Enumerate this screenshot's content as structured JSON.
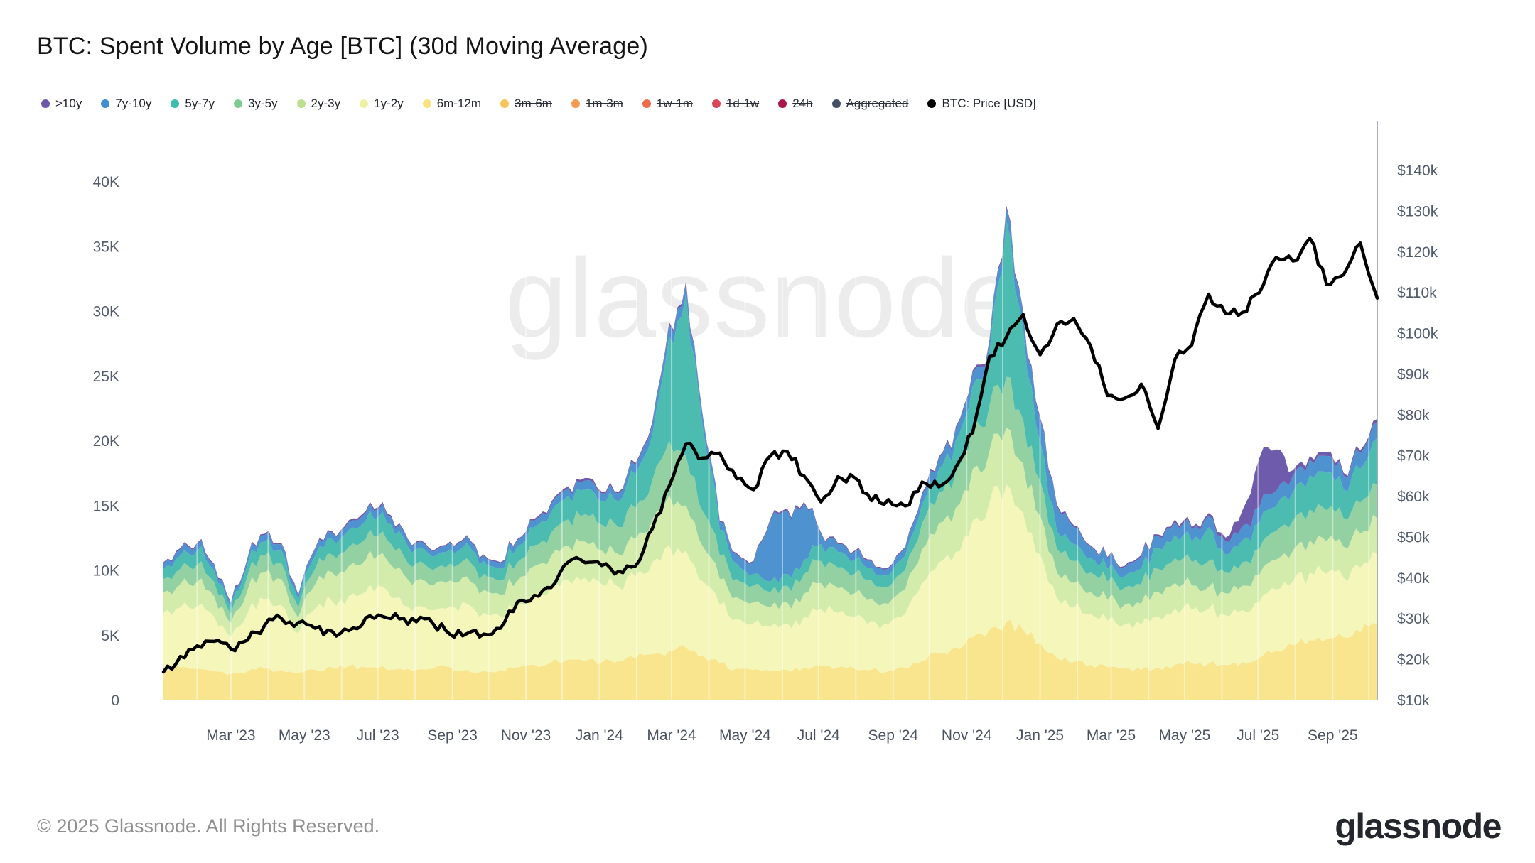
{
  "page": {
    "title": "BTC: Spent Volume by Age [BTC] (30d Moving Average)",
    "watermark": "glassnode"
  },
  "footer": {
    "copyright": "© 2025 Glassnode. All Rights Reserved.",
    "logo": "glassnode"
  },
  "legend": [
    {
      "label": ">10y",
      "color": "#6b58a8",
      "struck": false
    },
    {
      "label": "7y-10y",
      "color": "#3f8fd2",
      "struck": false
    },
    {
      "label": "5y-7y",
      "color": "#3dbcb0",
      "struck": false
    },
    {
      "label": "3y-5y",
      "color": "#7ecc93",
      "struck": false
    },
    {
      "label": "2y-3y",
      "color": "#bce08e",
      "struck": false
    },
    {
      "label": "1y-2y",
      "color": "#eef1a0",
      "struck": false
    },
    {
      "label": "6m-12m",
      "color": "#f7e37f",
      "struck": false
    },
    {
      "label": "3m-6m",
      "color": "#f7c45e",
      "struck": true
    },
    {
      "label": "1m-3m",
      "color": "#f59b50",
      "struck": true
    },
    {
      "label": "1w-1m",
      "color": "#ee6c4b",
      "struck": true
    },
    {
      "label": "1d-1w",
      "color": "#dc4458",
      "struck": true
    },
    {
      "label": "24h",
      "color": "#a8174c",
      "struck": true
    },
    {
      "label": "Aggregated",
      "color": "#445060",
      "struck": true
    },
    {
      "label": "BTC: Price [USD]",
      "color": "#000000",
      "struck": false
    }
  ],
  "chart_data": {
    "type": "area",
    "stacked": true,
    "grid": "subtle-monthly-vertical",
    "start_date": "2023-01-04",
    "step_days": 14,
    "points_per_series": 73,
    "left_axis": {
      "unit": "BTC spent volume (30d MA)",
      "tick_labels": [
        "0",
        "5K",
        "10K",
        "15K",
        "20K",
        "25K",
        "30K",
        "35K",
        "40K"
      ],
      "tick_values": [
        0,
        5,
        10,
        15,
        20,
        25,
        30,
        35,
        40
      ],
      "range_k": [
        0,
        44.6
      ]
    },
    "right_axis": {
      "unit": "BTC price USD",
      "tick_labels": [
        "$10k",
        "$20k",
        "$30k",
        "$40k",
        "$50k",
        "$60k",
        "$70k",
        "$80k",
        "$90k",
        "$100k",
        "$110k",
        "$120k",
        "$130k",
        "$140k"
      ],
      "tick_values_k": [
        10,
        20,
        30,
        40,
        50,
        60,
        70,
        80,
        90,
        100,
        110,
        120,
        130,
        140
      ],
      "range_k": [
        10,
        152
      ]
    },
    "x_ticks": [
      {
        "label": "Mar '23",
        "date": "2023-03-01"
      },
      {
        "label": "May '23",
        "date": "2023-05-01"
      },
      {
        "label": "Jul '23",
        "date": "2023-07-01"
      },
      {
        "label": "Sep '23",
        "date": "2023-09-01"
      },
      {
        "label": "Nov '23",
        "date": "2023-11-01"
      },
      {
        "label": "Jan '24",
        "date": "2024-01-01"
      },
      {
        "label": "Mar '24",
        "date": "2024-03-01"
      },
      {
        "label": "May '24",
        "date": "2024-05-01"
      },
      {
        "label": "Jul '24",
        "date": "2024-07-01"
      },
      {
        "label": "Sep '24",
        "date": "2024-09-01"
      },
      {
        "label": "Nov '24",
        "date": "2024-11-01"
      },
      {
        "label": "Jan '25",
        "date": "2025-01-01"
      },
      {
        "label": "Mar '25",
        "date": "2025-03-01"
      },
      {
        "label": "May '25",
        "date": "2025-05-01"
      },
      {
        "label": "Jul '25",
        "date": "2025-07-01"
      },
      {
        "label": "Sep '25",
        "date": "2025-09-01"
      }
    ],
    "series": [
      {
        "name": "6m-12m",
        "color": "#f8e58e",
        "values_k": [
          2.4,
          2.5,
          2.4,
          2.2,
          2.0,
          2.2,
          2.4,
          2.3,
          2.1,
          2.3,
          2.5,
          2.6,
          2.5,
          2.6,
          2.4,
          2.3,
          2.4,
          2.5,
          2.3,
          2.2,
          2.3,
          2.5,
          2.7,
          2.9,
          3.1,
          3.0,
          2.9,
          3.0,
          3.2,
          3.5,
          3.8,
          4.0,
          3.4,
          2.8,
          2.4,
          2.3,
          2.2,
          2.3,
          2.5,
          2.6,
          2.5,
          2.4,
          2.3,
          2.2,
          2.4,
          3.0,
          3.6,
          4.0,
          4.8,
          5.4,
          6.0,
          5.4,
          4.4,
          3.2,
          2.9,
          2.7,
          2.5,
          2.4,
          2.3,
          2.5,
          2.7,
          2.8,
          2.8,
          2.7,
          2.9,
          3.2,
          3.8,
          4.2,
          4.6,
          4.7,
          4.8,
          5.2,
          5.8
        ]
      },
      {
        "name": "1y-2y",
        "color": "#f4f6ba",
        "values_k": [
          4.3,
          4.6,
          4.8,
          4.2,
          2.8,
          4.5,
          5.3,
          5.0,
          3.0,
          4.7,
          5.1,
          5.4,
          5.8,
          6.1,
          5.5,
          4.9,
          4.5,
          4.7,
          5.1,
          4.5,
          4.1,
          4.7,
          5.3,
          5.7,
          6.1,
          6.4,
          6.0,
          5.7,
          6.3,
          7.1,
          8.1,
          7.5,
          5.7,
          4.5,
          3.8,
          3.6,
          3.4,
          3.6,
          3.9,
          4.4,
          4.2,
          4.0,
          3.8,
          3.6,
          4.2,
          6.0,
          7.0,
          7.4,
          9.0,
          9.8,
          10.6,
          9.0,
          6.8,
          4.6,
          4.2,
          3.9,
          3.6,
          3.4,
          3.5,
          3.9,
          4.3,
          4.1,
          4.2,
          3.8,
          4.0,
          4.3,
          4.7,
          4.9,
          5.2,
          5.0,
          4.6,
          5.0,
          5.4
        ]
      },
      {
        "name": "2y-3y",
        "color": "#d4ecab",
        "values_k": [
          1.6,
          1.8,
          1.9,
          1.6,
          1.1,
          1.8,
          2.1,
          2.0,
          1.2,
          1.9,
          2.2,
          2.3,
          2.5,
          2.6,
          2.3,
          2.0,
          1.9,
          2.0,
          2.1,
          1.8,
          1.7,
          2.0,
          2.3,
          2.5,
          2.7,
          2.8,
          2.6,
          2.5,
          2.9,
          3.3,
          3.9,
          3.5,
          2.7,
          2.0,
          1.7,
          1.6,
          1.5,
          1.6,
          1.8,
          2.0,
          1.9,
          1.8,
          1.7,
          1.6,
          1.9,
          2.6,
          3.0,
          3.4,
          4.0,
          4.0,
          4.4,
          3.8,
          3.0,
          2.0,
          1.9,
          1.7,
          1.6,
          1.5,
          1.6,
          1.9,
          2.0,
          1.9,
          1.7,
          1.7,
          1.9,
          2.1,
          2.3,
          2.4,
          2.5,
          2.5,
          2.4,
          2.6,
          2.8
        ]
      },
      {
        "name": "3y-5y",
        "color": "#93d1a2",
        "values_k": [
          1.0,
          1.2,
          1.3,
          1.1,
          0.7,
          1.1,
          1.3,
          1.2,
          0.8,
          1.2,
          1.4,
          1.5,
          1.6,
          1.7,
          1.5,
          1.3,
          1.2,
          1.3,
          1.4,
          1.2,
          1.1,
          1.4,
          1.6,
          1.8,
          2.0,
          2.1,
          2.0,
          2.1,
          2.4,
          3.0,
          4.2,
          3.8,
          2.7,
          1.8,
          1.4,
          1.3,
          1.2,
          1.3,
          1.5,
          1.7,
          1.6,
          1.5,
          1.4,
          1.3,
          1.5,
          2.0,
          2.4,
          2.8,
          3.4,
          3.5,
          3.9,
          3.4,
          2.7,
          1.8,
          1.7,
          1.5,
          1.4,
          1.3,
          1.5,
          1.8,
          1.9,
          1.8,
          2.0,
          1.6,
          1.8,
          2.0,
          2.2,
          2.3,
          2.4,
          2.4,
          2.2,
          2.4,
          2.6
        ]
      },
      {
        "name": "5y-7y",
        "color": "#4cbcb1",
        "values_k": [
          0.8,
          1.0,
          1.1,
          0.9,
          0.5,
          0.9,
          1.1,
          1.0,
          0.6,
          1.0,
          1.2,
          1.3,
          1.4,
          1.5,
          1.3,
          1.1,
          1.0,
          1.1,
          1.2,
          1.0,
          0.9,
          1.2,
          1.4,
          1.6,
          1.8,
          1.9,
          1.8,
          2.0,
          2.6,
          3.5,
          8.0,
          12.5,
          6.5,
          2.0,
          1.2,
          0.9,
          0.8,
          0.9,
          1.1,
          1.3,
          1.2,
          1.1,
          1.0,
          0.9,
          1.1,
          1.5,
          1.8,
          2.4,
          3.0,
          4.0,
          12.0,
          7.0,
          3.0,
          1.4,
          1.3,
          1.1,
          1.0,
          0.9,
          1.2,
          1.6,
          1.8,
          1.6,
          2.6,
          1.4,
          1.7,
          2.0,
          1.9,
          2.2,
          2.6,
          2.9,
          2.2,
          2.6,
          3.6
        ]
      },
      {
        "name": "7y-10y",
        "color": "#4e93cf",
        "values_k": [
          0.4,
          0.5,
          0.5,
          0.4,
          0.3,
          0.4,
          0.5,
          0.5,
          0.3,
          0.5,
          0.5,
          0.6,
          0.6,
          0.6,
          0.5,
          0.5,
          0.4,
          0.5,
          0.5,
          0.4,
          0.4,
          0.5,
          0.5,
          0.6,
          0.6,
          0.7,
          0.6,
          0.6,
          0.7,
          0.8,
          0.9,
          0.8,
          0.7,
          0.6,
          0.7,
          0.9,
          4.7,
          4.9,
          4.3,
          0.8,
          0.6,
          0.6,
          0.5,
          0.5,
          0.6,
          0.7,
          0.8,
          0.9,
          1.0,
          0.9,
          1.0,
          1.2,
          1.7,
          1.9,
          1.3,
          0.9,
          0.8,
          0.7,
          0.9,
          0.9,
          1.0,
          0.9,
          0.9,
          1.0,
          1.1,
          1.2,
          1.2,
          1.3,
          1.2,
          1.3,
          1.1,
          1.2,
          1.2
        ]
      },
      {
        "name": ">10y",
        "color": "#6f5bab",
        "values_k": [
          0.1,
          0.1,
          0.1,
          0.1,
          0.1,
          0.1,
          0.1,
          0.1,
          0.1,
          0.1,
          0.1,
          0.15,
          0.15,
          0.15,
          0.1,
          0.1,
          0.1,
          0.1,
          0.1,
          0.1,
          0.1,
          0.1,
          0.15,
          0.15,
          0.15,
          0.2,
          0.15,
          0.15,
          0.15,
          0.2,
          0.2,
          0.2,
          0.15,
          0.1,
          0.1,
          0.1,
          0.15,
          0.15,
          0.15,
          0.1,
          0.1,
          0.1,
          0.1,
          0.1,
          0.1,
          0.15,
          0.15,
          0.15,
          0.2,
          0.2,
          0.2,
          0.2,
          0.2,
          0.15,
          0.15,
          0.1,
          0.1,
          0.1,
          0.15,
          0.15,
          0.2,
          0.2,
          0.2,
          0.3,
          1.2,
          3.8,
          3.2,
          0.4,
          0.3,
          0.3,
          0.2,
          0.25,
          0.25
        ]
      }
    ],
    "price_series": {
      "name": "BTC: Price [USD]",
      "color": "#000000",
      "values_usd_k": [
        16.8,
        20.6,
        23.2,
        24.3,
        22.4,
        24.6,
        28.2,
        29.9,
        28.9,
        27.5,
        26.8,
        26.9,
        30.1,
        30.4,
        29.8,
        29.1,
        28.6,
        26.0,
        26.2,
        26.1,
        27.5,
        34.0,
        35.6,
        37.5,
        43.7,
        43.6,
        42.9,
        41.5,
        42.8,
        51.9,
        62.4,
        72.8,
        69.3,
        70.5,
        64.2,
        61.5,
        69.8,
        70.9,
        64.9,
        58.5,
        64.7,
        64.4,
        58.8,
        59.1,
        57.5,
        63.4,
        62.2,
        67.0,
        75.5,
        94.2,
        98.9,
        104.5,
        94.6,
        102.1,
        103.5,
        96.8,
        84.6,
        83.9,
        87.4,
        76.5,
        93.5,
        97.0,
        109.5,
        104.7,
        105.0,
        109.8,
        118.5,
        117.6,
        123.2,
        111.8,
        114.2,
        122.0,
        108.5
      ]
    }
  }
}
